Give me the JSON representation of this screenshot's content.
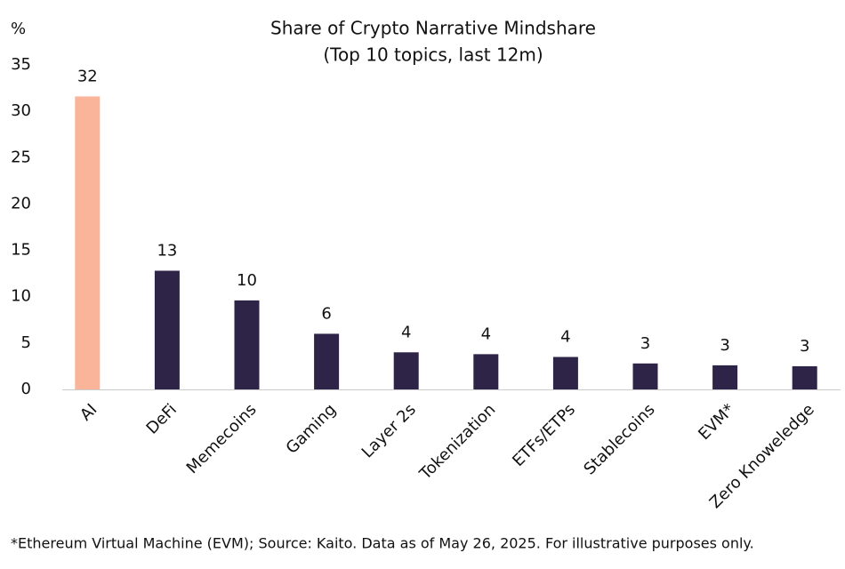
{
  "chart_data": {
    "type": "bar",
    "title": "Share of Crypto Narrative Mindshare",
    "subtitle": "(Top 10 topics, last 12m)",
    "y_label": "%",
    "footnote": "*Ethereum Virtual Machine (EVM); Source: Kaito. Data as of May 26, 2025. For illustrative purposes only.",
    "categories": [
      "AI",
      "DeFi",
      "Memecoins",
      "Gaming",
      "Layer 2s",
      "Tokenization",
      "ETFs/ETPs",
      "Stablecoins",
      "EVM*",
      "Zero Knoweledge"
    ],
    "values": [
      31.6,
      12.8,
      9.6,
      6.0,
      4.0,
      3.8,
      3.5,
      2.8,
      2.6,
      2.5
    ],
    "value_labels": [
      "32",
      "13",
      "10",
      "6",
      "4",
      "4",
      "4",
      "3",
      "3",
      "3"
    ],
    "colors": [
      "#f9b49a",
      "#2e2447",
      "#2e2447",
      "#2e2447",
      "#2e2447",
      "#2e2447",
      "#2e2447",
      "#2e2447",
      "#2e2447",
      "#2e2447"
    ],
    "ylim": [
      0,
      35
    ],
    "yticks": [
      0,
      5,
      10,
      15,
      20,
      25,
      30,
      35
    ],
    "grid": false
  }
}
